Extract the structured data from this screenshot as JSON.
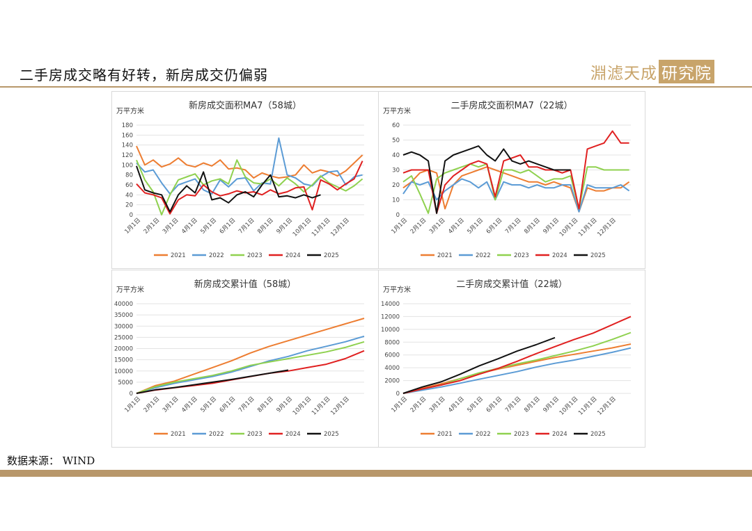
{
  "page_title": "二手房成交略有好转，新房成交仍偏弱",
  "logo": {
    "text_main": "淵滤天成",
    "text_box": "研究院",
    "brand_color": "#c8a46a"
  },
  "source_note": "数据来源： WIND",
  "series_colors": {
    "2021": "#ed7d31",
    "2022": "#5b9bd5",
    "2023": "#8fd14f",
    "2024": "#e02020",
    "2025": "#111111"
  },
  "chart_data": [
    {
      "type": "line",
      "title": "新房成交面积MA7（58城）",
      "unit": "万平方米",
      "ylim": [
        0,
        180
      ],
      "yticks": [
        0,
        20,
        40,
        60,
        80,
        100,
        120,
        140,
        160,
        180
      ],
      "xticks": [
        "1月1日",
        "2月1日",
        "3月1日",
        "4月1日",
        "5月1日",
        "6月1日",
        "7月1日",
        "8月1日",
        "9月1日",
        "10月1日",
        "11月1日",
        "12月1日"
      ],
      "legend_position": "bottom",
      "series": [
        {
          "name": "2021",
          "values": [
            138,
            100,
            110,
            96,
            102,
            114,
            100,
            96,
            104,
            98,
            110,
            92,
            94,
            90,
            74,
            84,
            78,
            74,
            76,
            80,
            100,
            84,
            90,
            86,
            78,
            88,
            104,
            120
          ]
        },
        {
          "name": "2022",
          "values": [
            104,
            86,
            90,
            64,
            42,
            60,
            66,
            72,
            50,
            42,
            70,
            56,
            72,
            74,
            48,
            64,
            62,
            154,
            80,
            74,
            62,
            58,
            76,
            86,
            88,
            60,
            76,
            80
          ]
        },
        {
          "name": "2023",
          "values": [
            110,
            70,
            46,
            0,
            40,
            70,
            76,
            82,
            60,
            68,
            72,
            62,
            110,
            76,
            64,
            62,
            72,
            58,
            74,
            62,
            46,
            60,
            78,
            64,
            56,
            48,
            58,
            72
          ]
        },
        {
          "name": "2024",
          "values": [
            62,
            44,
            40,
            34,
            2,
            30,
            40,
            38,
            60,
            46,
            38,
            42,
            48,
            44,
            46,
            40,
            50,
            42,
            46,
            54,
            56,
            10,
            70,
            62,
            50,
            62,
            72,
            108
          ]
        },
        {
          "name": "2025",
          "values": [
            98,
            50,
            44,
            40,
            6,
            40,
            58,
            44,
            86,
            30,
            34,
            24,
            40,
            46,
            36,
            60,
            80,
            36,
            38,
            34,
            40,
            34,
            40
          ]
        }
      ]
    },
    {
      "type": "line",
      "title": "二手房成交面积MA7（22城）",
      "unit": "万平方米",
      "ylim": [
        0,
        60
      ],
      "yticks": [
        0,
        10,
        20,
        30,
        40,
        50,
        60
      ],
      "xticks": [
        "1月1日",
        "2月1日",
        "3月1日",
        "4月1日",
        "5月1日",
        "6月1日",
        "7月1日",
        "8月1日",
        "9月1日",
        "10月1日",
        "11月1日",
        "12月1日"
      ],
      "legend_position": "bottom",
      "series": [
        {
          "name": "2021",
          "values": [
            18,
            22,
            28,
            30,
            28,
            4,
            20,
            26,
            28,
            30,
            32,
            30,
            28,
            26,
            24,
            22,
            22,
            20,
            22,
            20,
            18,
            2,
            18,
            16,
            16,
            18,
            18,
            22
          ]
        },
        {
          "name": "2022",
          "values": [
            14,
            22,
            20,
            22,
            10,
            16,
            20,
            24,
            22,
            18,
            22,
            10,
            22,
            20,
            20,
            18,
            20,
            18,
            18,
            20,
            20,
            2,
            20,
            18,
            18,
            18,
            20,
            16
          ]
        },
        {
          "name": "2023",
          "values": [
            22,
            26,
            14,
            1,
            24,
            28,
            30,
            32,
            34,
            32,
            34,
            10,
            30,
            30,
            28,
            30,
            26,
            22,
            24,
            24,
            26,
            4,
            32,
            32,
            30,
            30,
            30,
            30
          ]
        },
        {
          "name": "2024",
          "values": [
            28,
            30,
            30,
            30,
            1,
            20,
            26,
            30,
            34,
            36,
            34,
            12,
            36,
            38,
            40,
            32,
            32,
            30,
            30,
            28,
            30,
            4,
            44,
            46,
            48,
            56,
            48,
            48
          ]
        },
        {
          "name": "2025",
          "values": [
            40,
            42,
            40,
            36,
            1,
            36,
            40,
            42,
            44,
            46,
            40,
            36,
            44,
            36,
            34,
            36,
            34,
            32,
            30,
            30,
            30
          ]
        }
      ]
    },
    {
      "type": "line",
      "title": "新房成交累计值（58城）",
      "unit": "万平方米",
      "ylim": [
        0,
        40000
      ],
      "yticks": [
        0,
        5000,
        10000,
        15000,
        20000,
        25000,
        30000,
        35000,
        40000
      ],
      "xticks": [
        "1月1日",
        "2月1日",
        "3月1日",
        "4月1日",
        "5月1日",
        "6月1日",
        "7月1日",
        "8月1日",
        "9月1日",
        "10月1日",
        "11月1日",
        "12月1日"
      ],
      "legend_position": "bottom",
      "series": [
        {
          "name": "2021",
          "x": [
            0,
            1,
            2,
            3,
            4,
            5,
            6,
            7,
            8,
            9,
            10,
            11,
            12
          ],
          "values": [
            0,
            3500,
            5500,
            8500,
            11500,
            14500,
            18000,
            21000,
            23500,
            26000,
            28500,
            31000,
            33500
          ]
        },
        {
          "name": "2022",
          "x": [
            0,
            1,
            2,
            3,
            4,
            5,
            6,
            7,
            8,
            9,
            10,
            11,
            12
          ],
          "values": [
            0,
            2500,
            4500,
            6000,
            7500,
            9500,
            12000,
            14500,
            16500,
            19000,
            21000,
            23000,
            25500
          ]
        },
        {
          "name": "2023",
          "x": [
            0,
            1,
            2,
            3,
            4,
            5,
            6,
            7,
            8,
            9,
            10,
            11,
            12
          ],
          "values": [
            0,
            3000,
            5000,
            6500,
            8000,
            10000,
            12500,
            14000,
            15500,
            17000,
            18500,
            20500,
            23000
          ]
        },
        {
          "name": "2024",
          "x": [
            0,
            1,
            2,
            3,
            4,
            5,
            6,
            7,
            8,
            9,
            10,
            11,
            12
          ],
          "values": [
            0,
            1500,
            2500,
            3500,
            4500,
            6000,
            7500,
            9000,
            10000,
            11500,
            13000,
            15500,
            19000
          ]
        },
        {
          "name": "2025",
          "x": [
            0,
            1,
            2,
            3,
            4,
            5,
            6,
            7,
            8
          ],
          "values": [
            0,
            1600,
            2600,
            3800,
            5000,
            6200,
            7600,
            9000,
            10400
          ]
        }
      ]
    },
    {
      "type": "line",
      "title": "二手房成交累计值（22城）",
      "unit": "万平方米",
      "ylim": [
        0,
        14000
      ],
      "yticks": [
        0,
        2000,
        4000,
        6000,
        8000,
        10000,
        12000,
        14000
      ],
      "xticks": [
        "1月1日",
        "2月1日",
        "3月1日",
        "4月1日",
        "5月1日",
        "6月1日",
        "7月1日",
        "8月1日",
        "9月1日",
        "10月1日",
        "11月1日",
        "12月1日"
      ],
      "legend_position": "bottom",
      "series": [
        {
          "name": "2021",
          "x": [
            0,
            1,
            2,
            3,
            4,
            5,
            6,
            7,
            8,
            9,
            10,
            11,
            12
          ],
          "values": [
            0,
            800,
            1500,
            2300,
            3100,
            3800,
            4400,
            5000,
            5600,
            6100,
            6600,
            7100,
            7700
          ]
        },
        {
          "name": "2022",
          "x": [
            0,
            1,
            2,
            3,
            4,
            5,
            6,
            7,
            8,
            9,
            10,
            11,
            12
          ],
          "values": [
            0,
            500,
            1000,
            1600,
            2200,
            2800,
            3400,
            4100,
            4700,
            5200,
            5800,
            6400,
            7100
          ]
        },
        {
          "name": "2023",
          "x": [
            0,
            1,
            2,
            3,
            4,
            5,
            6,
            7,
            8,
            9,
            10,
            11,
            12
          ],
          "values": [
            0,
            700,
            1300,
            2300,
            3200,
            3900,
            4600,
            5200,
            5900,
            6600,
            7400,
            8400,
            9500
          ]
        },
        {
          "name": "2024",
          "x": [
            0,
            1,
            2,
            3,
            4,
            5,
            6,
            7,
            8,
            9,
            10,
            11,
            12
          ],
          "values": [
            0,
            700,
            1300,
            2000,
            3000,
            3900,
            5000,
            6200,
            7300,
            8400,
            9400,
            10700,
            12000
          ]
        },
        {
          "name": "2025",
          "x": [
            0,
            1,
            2,
            3,
            4,
            5,
            6,
            7,
            8
          ],
          "values": [
            0,
            1000,
            1800,
            3000,
            4300,
            5400,
            6600,
            7600,
            8700
          ]
        }
      ]
    }
  ]
}
